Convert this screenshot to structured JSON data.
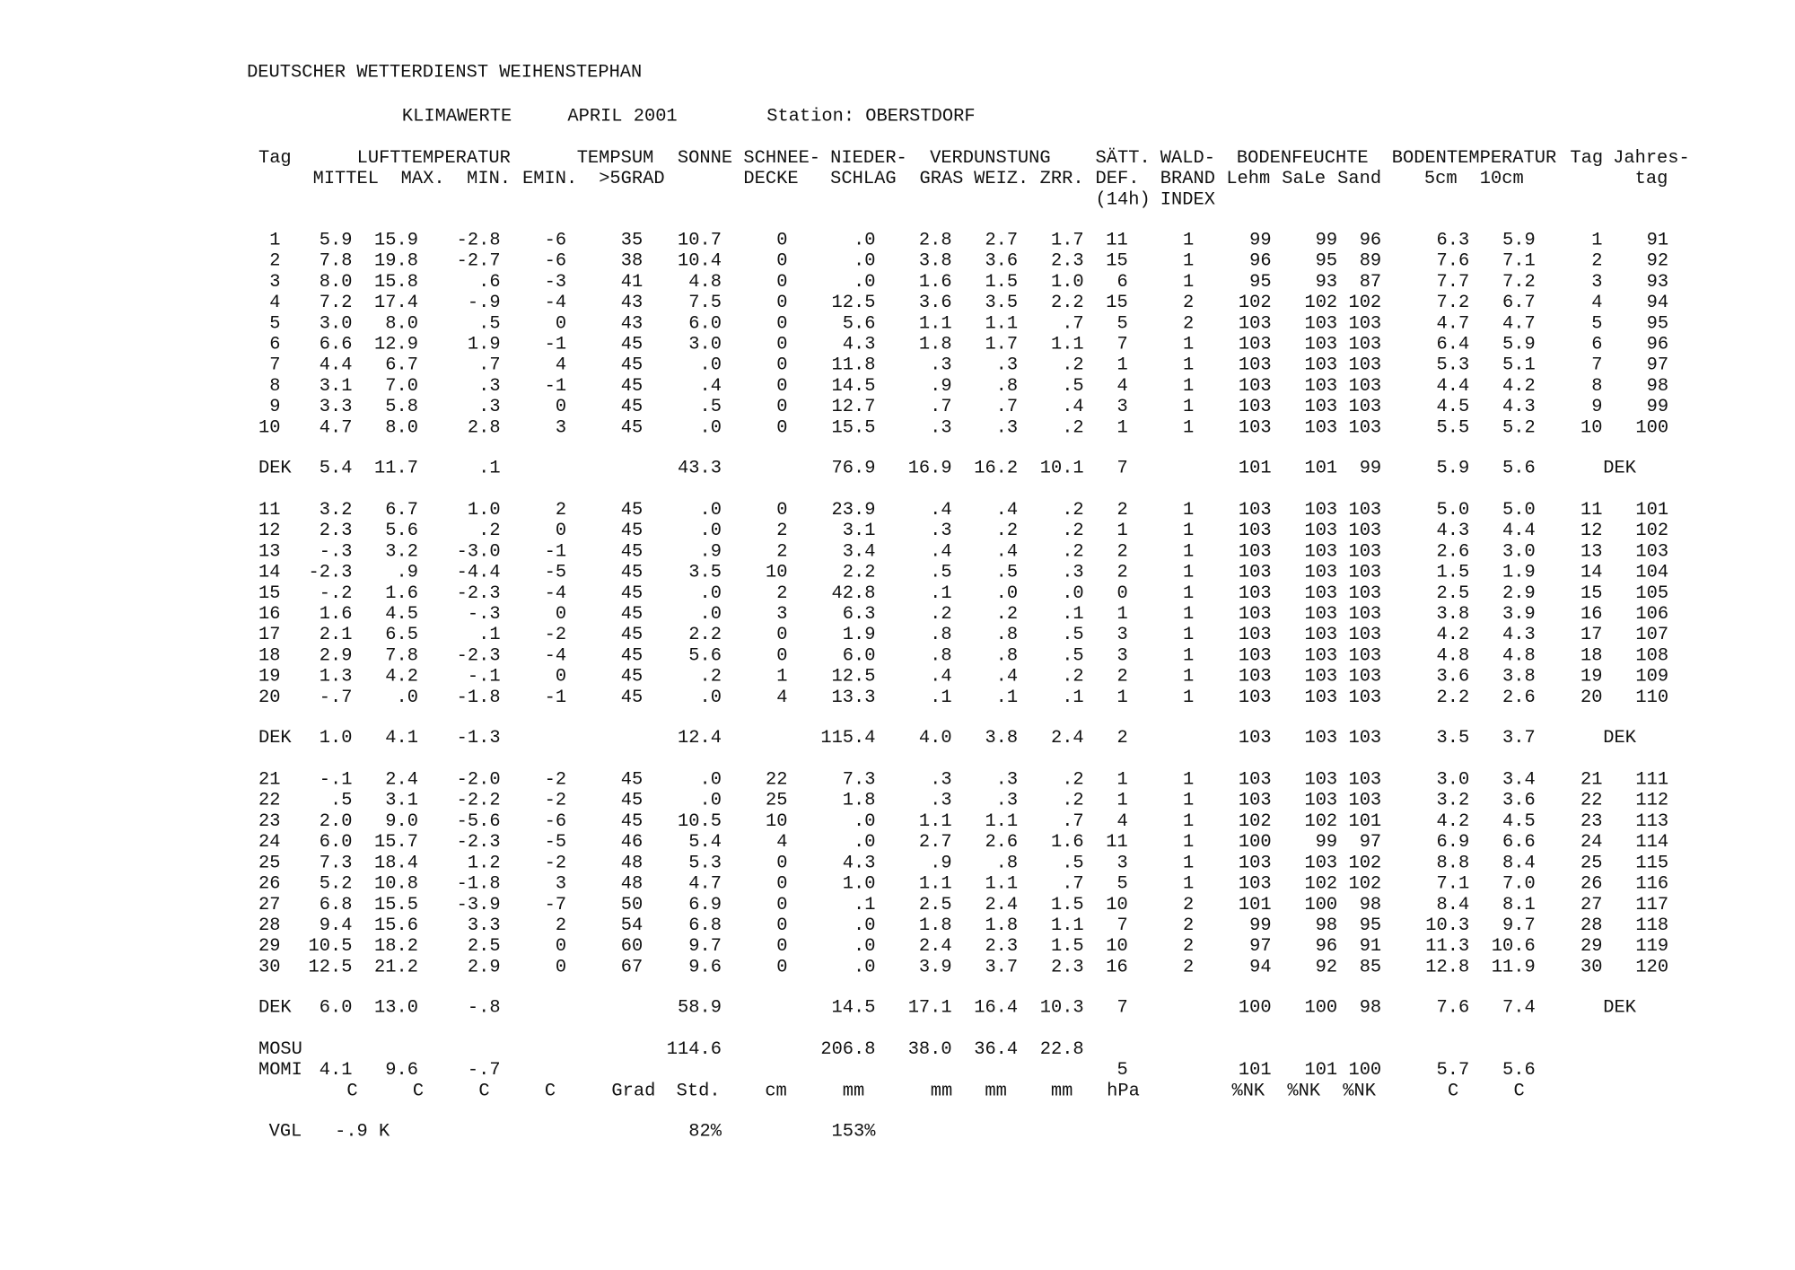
{
  "header": {
    "title": "DEUTSCHER WETTERDIENST WEIHENSTEPHAN",
    "subtitle": "KLIMAWERTE",
    "period": "APRIL 2001",
    "station": "Station: OBERSTDORF"
  },
  "table": {
    "column_headers": [
      [
        "Tag",
        "LUFTTEMPERATUR",
        "TEMPSUM",
        "SONNE",
        "SCHNEE-",
        "NIEDER-",
        "VERDUNSTUNG",
        "SÄTT.",
        "WALD-",
        "BODENFEUCHTE",
        "BODENTEMPERATUR",
        "Tag",
        "Jahres-"
      ],
      [
        "MITTEL",
        "MAX.",
        "MIN.",
        "EMIN.",
        ">5GRAD",
        "DECKE",
        "SCHLAG",
        "GRAS",
        "WEIZ.",
        "ZRR.",
        "DEF.",
        "BRAND",
        "Lehm",
        "SaLe",
        "Sand",
        "5cm",
        "10cm",
        "tag"
      ],
      [
        "(14h)",
        "INDEX"
      ]
    ],
    "rows": [
      [
        "1",
        "5.9",
        "15.9",
        "-2.8",
        "-6",
        "35",
        "10.7",
        "0",
        ".0",
        "2.8",
        "2.7",
        "1.7",
        "11",
        "1",
        "99",
        "99",
        "96",
        "6.3",
        "5.9",
        "1",
        "91"
      ],
      [
        "2",
        "7.8",
        "19.8",
        "-2.7",
        "-6",
        "38",
        "10.4",
        "0",
        ".0",
        "3.8",
        "3.6",
        "2.3",
        "15",
        "1",
        "96",
        "95",
        "89",
        "7.6",
        "7.1",
        "2",
        "92"
      ],
      [
        "3",
        "8.0",
        "15.8",
        ".6",
        "-3",
        "41",
        "4.8",
        "0",
        ".0",
        "1.6",
        "1.5",
        "1.0",
        "6",
        "1",
        "95",
        "93",
        "87",
        "7.7",
        "7.2",
        "3",
        "93"
      ],
      [
        "4",
        "7.2",
        "17.4",
        "-.9",
        "-4",
        "43",
        "7.5",
        "0",
        "12.5",
        "3.6",
        "3.5",
        "2.2",
        "15",
        "2",
        "102",
        "102",
        "102",
        "7.2",
        "6.7",
        "4",
        "94"
      ],
      [
        "5",
        "3.0",
        "8.0",
        ".5",
        "0",
        "43",
        "6.0",
        "0",
        "5.6",
        "1.1",
        "1.1",
        ".7",
        "5",
        "2",
        "103",
        "103",
        "103",
        "4.7",
        "4.7",
        "5",
        "95"
      ],
      [
        "6",
        "6.6",
        "12.9",
        "1.9",
        "-1",
        "45",
        "3.0",
        "0",
        "4.3",
        "1.8",
        "1.7",
        "1.1",
        "7",
        "1",
        "103",
        "103",
        "103",
        "6.4",
        "5.9",
        "6",
        "96"
      ],
      [
        "7",
        "4.4",
        "6.7",
        ".7",
        "4",
        "45",
        ".0",
        "0",
        "11.8",
        ".3",
        ".3",
        ".2",
        "1",
        "1",
        "103",
        "103",
        "103",
        "5.3",
        "5.1",
        "7",
        "97"
      ],
      [
        "8",
        "3.1",
        "7.0",
        ".3",
        "-1",
        "45",
        ".4",
        "0",
        "14.5",
        ".9",
        ".8",
        ".5",
        "4",
        "1",
        "103",
        "103",
        "103",
        "4.4",
        "4.2",
        "8",
        "98"
      ],
      [
        "9",
        "3.3",
        "5.8",
        ".3",
        "0",
        "45",
        ".5",
        "0",
        "12.7",
        ".7",
        ".7",
        ".4",
        "3",
        "1",
        "103",
        "103",
        "103",
        "4.5",
        "4.3",
        "9",
        "99"
      ],
      [
        "10",
        "4.7",
        "8.0",
        "2.8",
        "3",
        "45",
        ".0",
        "0",
        "15.5",
        ".3",
        ".3",
        ".2",
        "1",
        "1",
        "103",
        "103",
        "103",
        "5.5",
        "5.2",
        "10",
        "100"
      ],
      [
        "DEK",
        "5.4",
        "11.7",
        ".1",
        null,
        null,
        "43.3",
        null,
        "76.9",
        "16.9",
        "16.2",
        "10.1",
        "7",
        null,
        "101",
        "101",
        "99",
        "5.9",
        "5.6",
        null,
        "DEK"
      ],
      [
        "11",
        "3.2",
        "6.7",
        "1.0",
        "2",
        "45",
        ".0",
        "0",
        "23.9",
        ".4",
        ".4",
        ".2",
        "2",
        "1",
        "103",
        "103",
        "103",
        "5.0",
        "5.0",
        "11",
        "101"
      ],
      [
        "12",
        "2.3",
        "5.6",
        ".2",
        "0",
        "45",
        ".0",
        "2",
        "3.1",
        ".3",
        ".2",
        ".2",
        "1",
        "1",
        "103",
        "103",
        "103",
        "4.3",
        "4.4",
        "12",
        "102"
      ],
      [
        "13",
        "-.3",
        "3.2",
        "-3.0",
        "-1",
        "45",
        ".9",
        "2",
        "3.4",
        ".4",
        ".4",
        ".2",
        "2",
        "1",
        "103",
        "103",
        "103",
        "2.6",
        "3.0",
        "13",
        "103"
      ],
      [
        "14",
        "-2.3",
        ".9",
        "-4.4",
        "-5",
        "45",
        "3.5",
        "10",
        "2.2",
        ".5",
        ".5",
        ".3",
        "2",
        "1",
        "103",
        "103",
        "103",
        "1.5",
        "1.9",
        "14",
        "104"
      ],
      [
        "15",
        "-.2",
        "1.6",
        "-2.3",
        "-4",
        "45",
        ".0",
        "2",
        "42.8",
        ".1",
        ".0",
        ".0",
        "0",
        "1",
        "103",
        "103",
        "103",
        "2.5",
        "2.9",
        "15",
        "105"
      ],
      [
        "16",
        "1.6",
        "4.5",
        "-.3",
        "0",
        "45",
        ".0",
        "3",
        "6.3",
        ".2",
        ".2",
        ".1",
        "1",
        "1",
        "103",
        "103",
        "103",
        "3.8",
        "3.9",
        "16",
        "106"
      ],
      [
        "17",
        "2.1",
        "6.5",
        ".1",
        "-2",
        "45",
        "2.2",
        "0",
        "1.9",
        ".8",
        ".8",
        ".5",
        "3",
        "1",
        "103",
        "103",
        "103",
        "4.2",
        "4.3",
        "17",
        "107"
      ],
      [
        "18",
        "2.9",
        "7.8",
        "-2.3",
        "-4",
        "45",
        "5.6",
        "0",
        "6.0",
        ".8",
        ".8",
        ".5",
        "3",
        "1",
        "103",
        "103",
        "103",
        "4.8",
        "4.8",
        "18",
        "108"
      ],
      [
        "19",
        "1.3",
        "4.2",
        "-.1",
        "0",
        "45",
        ".2",
        "1",
        "12.5",
        ".4",
        ".4",
        ".2",
        "2",
        "1",
        "103",
        "103",
        "103",
        "3.6",
        "3.8",
        "19",
        "109"
      ],
      [
        "20",
        "-.7",
        ".0",
        "-1.8",
        "-1",
        "45",
        ".0",
        "4",
        "13.3",
        ".1",
        ".1",
        ".1",
        "1",
        "1",
        "103",
        "103",
        "103",
        "2.2",
        "2.6",
        "20",
        "110"
      ],
      [
        "DEK",
        "1.0",
        "4.1",
        "-1.3",
        null,
        null,
        "12.4",
        null,
        "115.4",
        "4.0",
        "3.8",
        "2.4",
        "2",
        null,
        "103",
        "103",
        "103",
        "3.5",
        "3.7",
        null,
        "DEK"
      ],
      [
        "21",
        "-.1",
        "2.4",
        "-2.0",
        "-2",
        "45",
        ".0",
        "22",
        "7.3",
        ".3",
        ".3",
        ".2",
        "1",
        "1",
        "103",
        "103",
        "103",
        "3.0",
        "3.4",
        "21",
        "111"
      ],
      [
        "22",
        ".5",
        "3.1",
        "-2.2",
        "-2",
        "45",
        ".0",
        "25",
        "1.8",
        ".3",
        ".3",
        ".2",
        "1",
        "1",
        "103",
        "103",
        "103",
        "3.2",
        "3.6",
        "22",
        "112"
      ],
      [
        "23",
        "2.0",
        "9.0",
        "-5.6",
        "-6",
        "45",
        "10.5",
        "10",
        ".0",
        "1.1",
        "1.1",
        ".7",
        "4",
        "1",
        "102",
        "102",
        "101",
        "4.2",
        "4.5",
        "23",
        "113"
      ],
      [
        "24",
        "6.0",
        "15.7",
        "-2.3",
        "-5",
        "46",
        "5.4",
        "4",
        ".0",
        "2.7",
        "2.6",
        "1.6",
        "11",
        "1",
        "100",
        "99",
        "97",
        "6.9",
        "6.6",
        "24",
        "114"
      ],
      [
        "25",
        "7.3",
        "18.4",
        "1.2",
        "-2",
        "48",
        "5.3",
        "0",
        "4.3",
        ".9",
        ".8",
        ".5",
        "3",
        "1",
        "103",
        "103",
        "102",
        "8.8",
        "8.4",
        "25",
        "115"
      ],
      [
        "26",
        "5.2",
        "10.8",
        "-1.8",
        "3",
        "48",
        "4.7",
        "0",
        "1.0",
        "1.1",
        "1.1",
        ".7",
        "5",
        "1",
        "103",
        "102",
        "102",
        "7.1",
        "7.0",
        "26",
        "116"
      ],
      [
        "27",
        "6.8",
        "15.5",
        "-3.9",
        "-7",
        "50",
        "6.9",
        "0",
        ".1",
        "2.5",
        "2.4",
        "1.5",
        "10",
        "2",
        "101",
        "100",
        "98",
        "8.4",
        "8.1",
        "27",
        "117"
      ],
      [
        "28",
        "9.4",
        "15.6",
        "3.3",
        "2",
        "54",
        "6.8",
        "0",
        ".0",
        "1.8",
        "1.8",
        "1.1",
        "7",
        "2",
        "99",
        "98",
        "95",
        "10.3",
        "9.7",
        "28",
        "118"
      ],
      [
        "29",
        "10.5",
        "18.2",
        "2.5",
        "0",
        "60",
        "9.7",
        "0",
        ".0",
        "2.4",
        "2.3",
        "1.5",
        "10",
        "2",
        "97",
        "96",
        "91",
        "11.3",
        "10.6",
        "29",
        "119"
      ],
      [
        "30",
        "12.5",
        "21.2",
        "2.9",
        "0",
        "67",
        "9.6",
        "0",
        ".0",
        "3.9",
        "3.7",
        "2.3",
        "16",
        "2",
        "94",
        "92",
        "85",
        "12.8",
        "11.9",
        "30",
        "120"
      ],
      [
        "DEK",
        "6.0",
        "13.0",
        "-.8",
        null,
        null,
        "58.9",
        null,
        "14.5",
        "17.1",
        "16.4",
        "10.3",
        "7",
        null,
        "100",
        "100",
        "98",
        "7.6",
        "7.4",
        null,
        "DEK"
      ],
      [
        "MOSU",
        null,
        null,
        null,
        null,
        null,
        "114.6",
        null,
        "206.8",
        "38.0",
        "36.4",
        "22.8",
        null,
        null,
        null,
        null,
        null,
        null,
        null,
        null,
        null
      ],
      [
        "MOMI",
        "4.1",
        "9.6",
        "-.7",
        null,
        null,
        null,
        null,
        null,
        null,
        null,
        null,
        "5",
        null,
        "101",
        "101",
        "100",
        "5.7",
        "5.6",
        null,
        null
      ]
    ],
    "units": [
      "C",
      "C",
      "C",
      "C",
      "Grad",
      "Std.",
      "cm",
      "mm",
      "mm",
      "mm",
      "mm",
      "hPa",
      "%NK",
      "%NK",
      "%NK",
      "C",
      "C"
    ],
    "comparison": {
      "label": "VGL",
      "temperature": "-.9 K",
      "sunshine": "82%",
      "precipitation": "153%"
    }
  }
}
